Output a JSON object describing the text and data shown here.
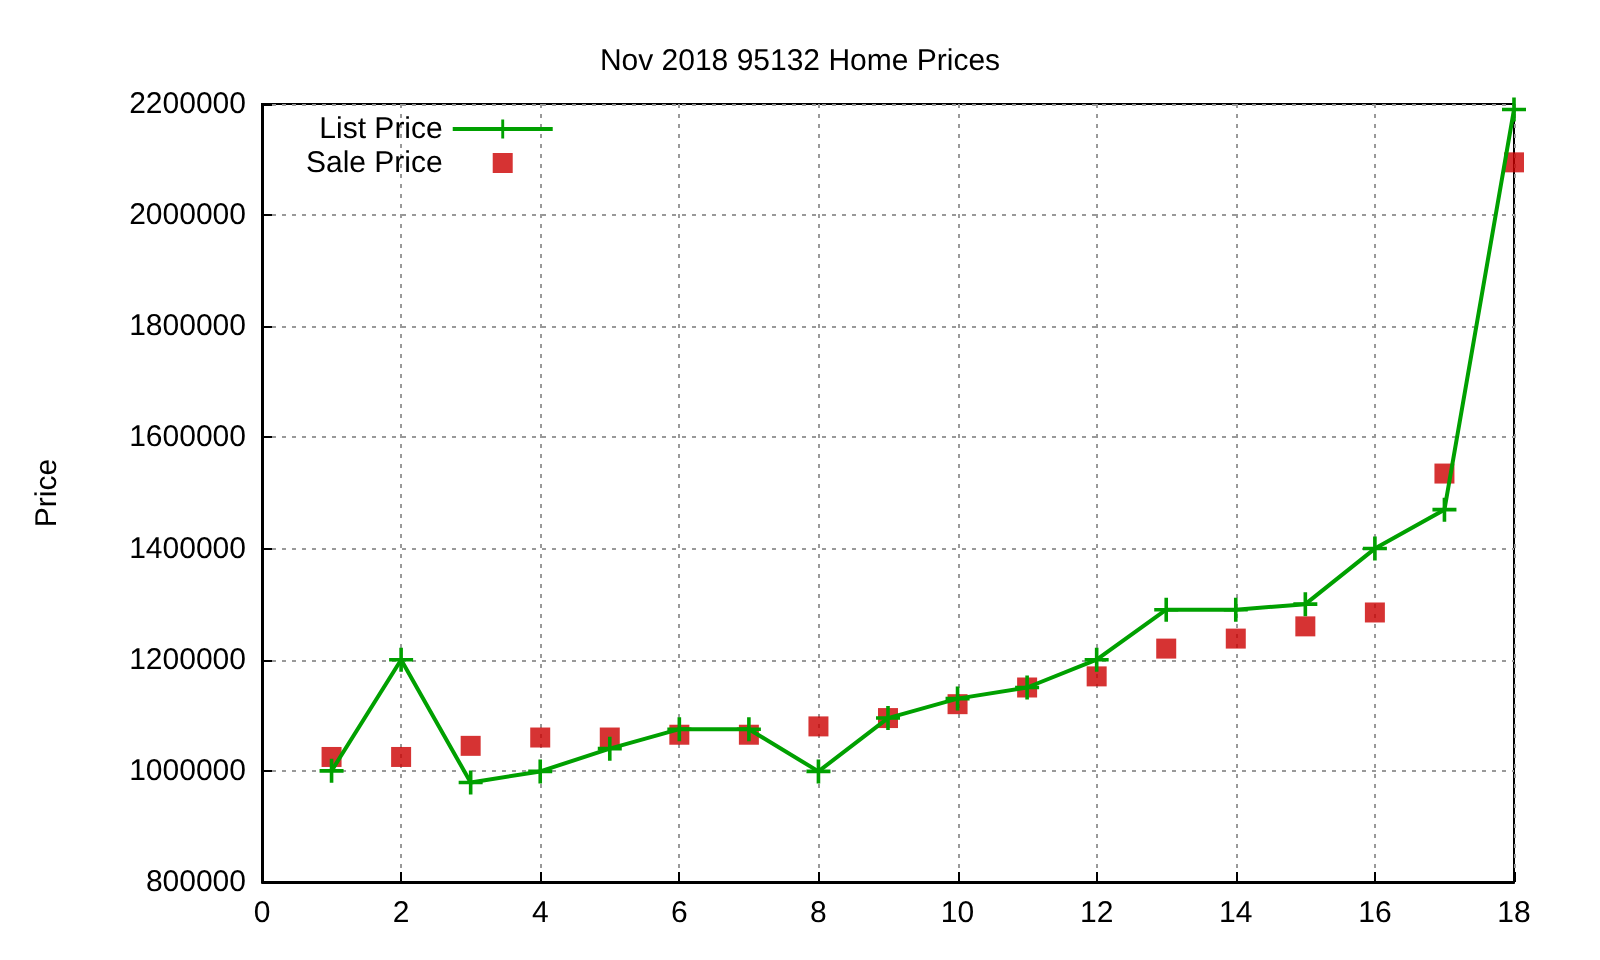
{
  "chart_data": {
    "type": "line",
    "title": "Nov 2018 95132 Home Prices",
    "ylabel": "Price",
    "x": [
      1,
      2,
      3,
      4,
      5,
      6,
      7,
      8,
      9,
      10,
      11,
      12,
      13,
      14,
      15,
      16,
      17,
      18
    ],
    "series": [
      {
        "name": "List Price",
        "color": "#00a000",
        "marker": "cross",
        "values": [
          1000000,
          1200000,
          979000,
          999000,
          1040000,
          1075000,
          1075000,
          999000,
          1095000,
          1130000,
          1150000,
          1200000,
          1290000,
          1290000,
          1300000,
          1400000,
          1470000,
          2190000
        ]
      },
      {
        "name": "Sale Price",
        "color": "#cc0000",
        "type": "scatter",
        "marker": "square",
        "values": [
          1025000,
          1025000,
          1045000,
          1060000,
          1060000,
          1065000,
          1065000,
          1080000,
          1095000,
          1120000,
          1150000,
          1170000,
          1220000,
          1238000,
          1260000,
          1285000,
          1535000,
          2095000
        ]
      }
    ],
    "xlim": [
      0,
      18
    ],
    "xticks": [
      0,
      2,
      4,
      6,
      8,
      10,
      12,
      14,
      16,
      18
    ],
    "ylim": [
      800000,
      2200000
    ],
    "yticks": [
      800000,
      1000000,
      1200000,
      1400000,
      1600000,
      1800000,
      2000000,
      2200000
    ],
    "grid": true,
    "legend": "top left"
  }
}
